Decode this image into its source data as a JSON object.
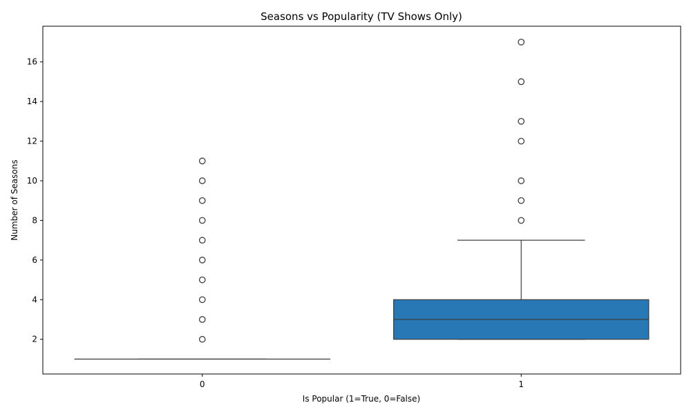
{
  "chart_data": {
    "type": "box",
    "title": "Seasons vs Popularity (TV Shows Only)",
    "xlabel": "Is Popular (1=True, 0=False)",
    "ylabel": "Number of Seasons",
    "categories": [
      "0",
      "1"
    ],
    "ylim": [
      0.25,
      17.8
    ],
    "yticks": [
      2,
      4,
      6,
      8,
      10,
      12,
      14,
      16
    ],
    "grid": false,
    "box_color": "#2878b5",
    "edge_color": "#3d3d3d",
    "boxes": [
      {
        "category": "0",
        "whisker_low": 1,
        "q1": 1,
        "median": 1,
        "q3": 1,
        "whisker_high": 1,
        "outliers": [
          2,
          3,
          4,
          5,
          6,
          7,
          8,
          9,
          10,
          11
        ]
      },
      {
        "category": "1",
        "whisker_low": 2,
        "q1": 2,
        "median": 3,
        "q3": 4,
        "whisker_high": 7,
        "outliers": [
          8,
          9,
          10,
          12,
          13,
          15,
          17
        ]
      }
    ]
  }
}
